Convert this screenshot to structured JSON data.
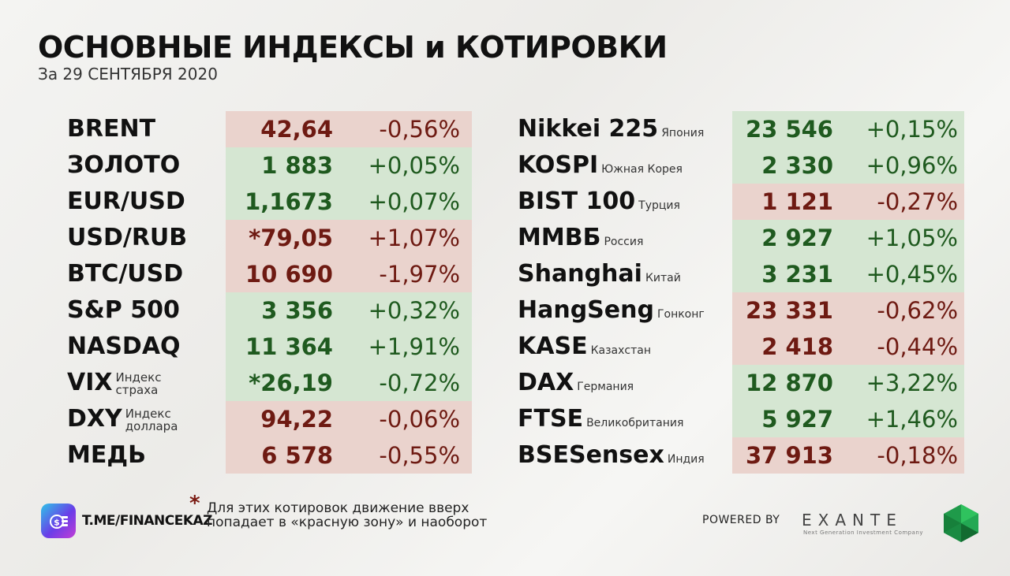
{
  "header": {
    "title": "ОСНОВНЫЕ ИНДЕКСЫ и КОТИРОВКИ",
    "subtitle": "За 29 СЕНТЯБРЯ 2020"
  },
  "colors": {
    "up_bg": "#d5e6d2",
    "down_bg": "#ead3cd",
    "up_text": "#1f5a1f",
    "down_text": "#6e1a12"
  },
  "left": [
    {
      "name": "BRENT",
      "value": "42,64",
      "change": "-0,56%",
      "trend": "down"
    },
    {
      "name": "ЗОЛОТО",
      "value": "1 883",
      "change": "+0,05%",
      "trend": "up"
    },
    {
      "name": "EUR/USD",
      "value": "1,1673",
      "change": "+0,07%",
      "trend": "up"
    },
    {
      "name": "USD/RUB",
      "value": "*79,05",
      "change": "+1,07%",
      "trend": "down"
    },
    {
      "name": "BTC/USD",
      "value": "10 690",
      "change": "-1,97%",
      "trend": "down"
    },
    {
      "name": "S&P 500",
      "value": "3 356",
      "change": "+0,32%",
      "trend": "up"
    },
    {
      "name": "NASDAQ",
      "value": "11 364",
      "change": "+1,91%",
      "trend": "up"
    },
    {
      "name": "VIX",
      "sub1": "Индекс",
      "sub2": "страха",
      "value": "*26,19",
      "change": "-0,72%",
      "trend": "up"
    },
    {
      "name": "DXY",
      "sub1": "Индекс",
      "sub2": "доллара",
      "value": "94,22",
      "change": "-0,06%",
      "trend": "down"
    },
    {
      "name": "МЕДЬ",
      "value": "6 578",
      "change": "-0,55%",
      "trend": "down"
    }
  ],
  "right": [
    {
      "name": "Nikkei 225",
      "country": "Япония",
      "value": "23 546",
      "change": "+0,15%",
      "trend": "up"
    },
    {
      "name": "KOSPI",
      "country": "Южная Корея",
      "value": "2 330",
      "change": "+0,96%",
      "trend": "up"
    },
    {
      "name": "BIST 100",
      "country": "Турция",
      "value": "1 121",
      "change": "-0,27%",
      "trend": "down"
    },
    {
      "name": "ММВБ",
      "country": "Россия",
      "value": "2 927",
      "change": "+1,05%",
      "trend": "up"
    },
    {
      "name": "Shanghai",
      "country": "Китай",
      "value": "3 231",
      "change": "+0,45%",
      "trend": "up"
    },
    {
      "name": "HangSeng",
      "country": "Гонконг",
      "value": "23 331",
      "change": "-0,62%",
      "trend": "down"
    },
    {
      "name": "KASE",
      "country": "Казахстан",
      "value": "2 418",
      "change": "-0,44%",
      "trend": "down"
    },
    {
      "name": "DAX",
      "country": "Германия",
      "value": "12 870",
      "change": "+3,22%",
      "trend": "up"
    },
    {
      "name": "FTSE",
      "country": "Великобритания",
      "value": "5 927",
      "change": "+1,46%",
      "trend": "up"
    },
    {
      "name": "BSESensex",
      "country": "Индия",
      "value": "37 913",
      "change": "-0,18%",
      "trend": "down"
    }
  ],
  "footer": {
    "channel": "T.ME/FINANCEKAZ",
    "asterisk": "*",
    "note": "Для этих котировок движение вверх попадает в «красную зону» и наоборот",
    "powered_by": "POWERED BY",
    "brand": "EXANTE",
    "brand_tagline": "Next Generation Investment Company",
    "logo_icon": "coin-stack-icon",
    "brand_icon": "green-gem-icon"
  }
}
